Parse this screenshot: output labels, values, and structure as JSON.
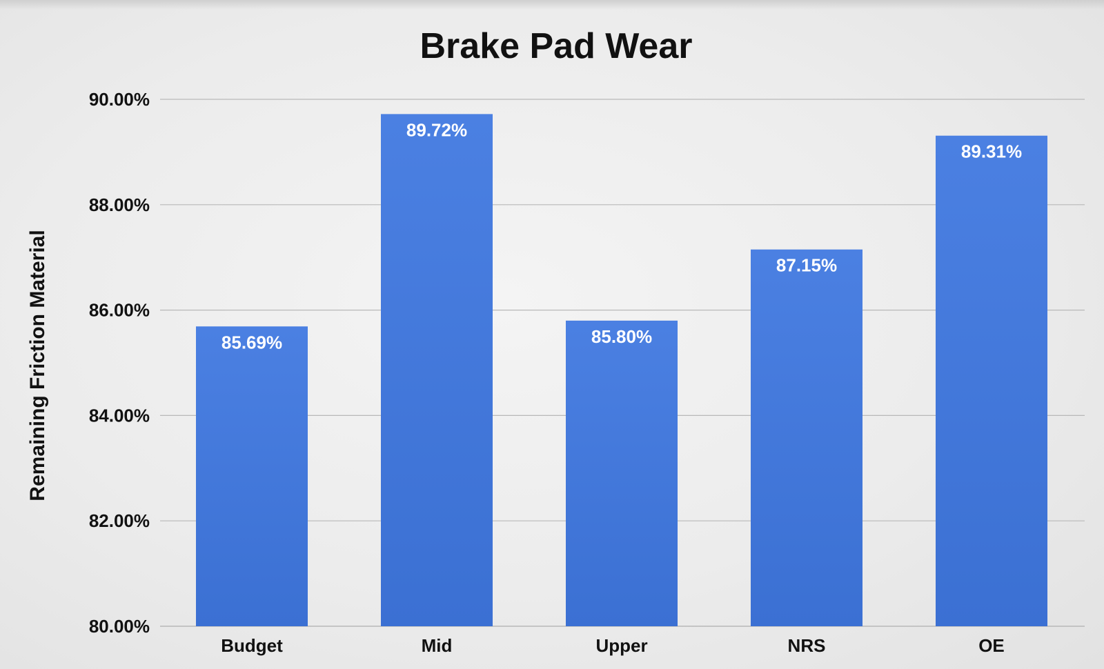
{
  "chart_data": {
    "type": "bar",
    "title": "Brake Pad Wear",
    "xlabel": "",
    "ylabel": "Remaining Friction Material",
    "categories": [
      "Budget",
      "Mid",
      "Upper",
      "NRS",
      "OE"
    ],
    "values": [
      85.69,
      89.72,
      85.8,
      87.15,
      89.31
    ],
    "data_labels": [
      "85.69%",
      "89.72%",
      "85.80%",
      "87.15%",
      "89.31%"
    ],
    "ylim": [
      80,
      90
    ],
    "yticks": [
      80,
      82,
      84,
      86,
      88,
      90
    ],
    "ytick_labels": [
      "80.00%",
      "82.00%",
      "84.00%",
      "86.00%",
      "88.00%",
      "90.00%"
    ],
    "grid": true,
    "legend": "none",
    "colors": {
      "bar": "#4a7fe0",
      "bar_dark": "#3d72d4",
      "grid": "#b8b8b8",
      "text": "#111111",
      "label": "#ffffff"
    }
  }
}
